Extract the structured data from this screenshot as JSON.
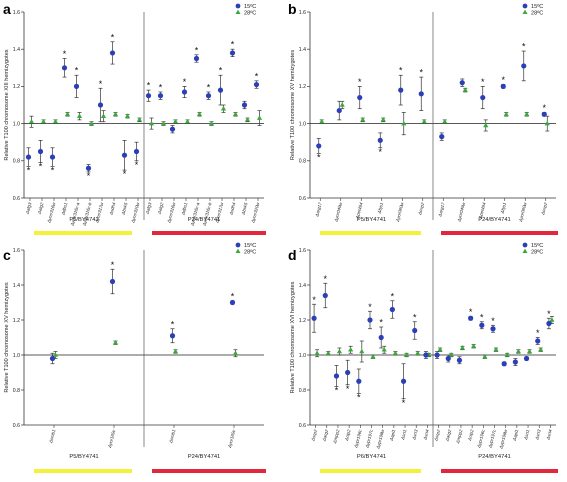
{
  "legend": {
    "series_1_label": "15ºC",
    "series_2_label": "28ºC",
    "series_1_color": "#2a3fb8",
    "series_2_color": "#3aa83a"
  },
  "colors": {
    "bar_left": "#f5f03a",
    "bar_right": "#e0283a"
  },
  "chart_data": [
    {
      "type": "scatter",
      "panel_letter": "a",
      "ylabel": "Relative T100 chromosome XIII hemizygotes",
      "ylim": [
        0.6,
        1.6
      ],
      "yticks": [
        "0.6",
        "0.8",
        "1.0",
        "1.2",
        "1.4",
        "1.6"
      ],
      "groups": [
        "P5/BY4741",
        "P24/BY4741"
      ],
      "categories": [
        "Δafg3",
        "Δatg2",
        "Δymr316w",
        "Δdbs1",
        "Δymr316c-a",
        "Δymr316c-b",
        "Δymr317w",
        "Δsdh4",
        "Δbsk5",
        "Δymr320w",
        "Δafg3",
        "Δatg2",
        "Δymr316w",
        "Δdbs1",
        "Δymr316c-a",
        "Δymr316c-b",
        "Δymr317w",
        "Δsdh4",
        "Δbsk5",
        "Δymr320w"
      ],
      "split_after": 10,
      "series": [
        {
          "name": "15ºC",
          "values": [
            0.82,
            0.85,
            0.82,
            1.3,
            1.2,
            0.76,
            1.1,
            1.38,
            0.83,
            0.85,
            1.15,
            1.15,
            0.97,
            1.17,
            1.35,
            1.15,
            1.18,
            1.38,
            1.1,
            1.21
          ],
          "errors": [
            0.05,
            0.06,
            0.05,
            0.05,
            0.06,
            0.02,
            0.09,
            0.06,
            0.08,
            0.05,
            0.03,
            0.02,
            0.02,
            0.03,
            0.02,
            0.02,
            0.08,
            0.02,
            0.02,
            0.02
          ]
        },
        {
          "name": "28ºC",
          "values": [
            1.01,
            1.01,
            1.01,
            1.05,
            1.04,
            1.0,
            1.04,
            1.05,
            1.04,
            1.02,
            1.0,
            1.0,
            1.01,
            1.01,
            1.05,
            1.0,
            1.08,
            1.05,
            1.02,
            1.03
          ],
          "errors": [
            0.03,
            0.01,
            0.01,
            0.01,
            0.02,
            0.01,
            0.03,
            0.01,
            0.01,
            0.01,
            0.03,
            0.01,
            0.01,
            0.01,
            0.01,
            0.01,
            0.02,
            0.01,
            0.01,
            0.04
          ]
        }
      ],
      "stars": [
        true,
        true,
        true,
        true,
        true,
        true,
        true,
        true,
        true,
        true,
        true,
        true,
        false,
        true,
        true,
        true,
        true,
        true,
        false,
        true
      ]
    },
    {
      "type": "scatter",
      "panel_letter": "b",
      "ylabel": "Relative T100 chromosome XV hemizygotes",
      "ylim": [
        0.6,
        1.6
      ],
      "yticks": [
        "0.6",
        "0.8",
        "1.0",
        "1.2",
        "1.4",
        "1.6"
      ],
      "groups": [
        "P5/BY4741",
        "P24/BY4741"
      ],
      "categories": [
        "Δarg17",
        "Δyor049w",
        "Δpet494",
        "Δbjs1",
        "Δyor060w",
        "Δovp2",
        "Δarg17",
        "Δyor049w",
        "Δpet494",
        "Δbjs1",
        "Δyor060w",
        "Δovp2"
      ],
      "split_after": 6,
      "series": [
        {
          "name": "15ºC",
          "values": [
            0.88,
            1.07,
            1.14,
            0.91,
            1.18,
            1.16,
            0.93,
            1.22,
            1.14,
            1.2,
            1.31,
            1.05
          ],
          "errors": [
            0.04,
            0.05,
            0.06,
            0.04,
            0.08,
            0.09,
            0.02,
            0.02,
            0.06,
            0.01,
            0.08,
            0.01
          ]
        },
        {
          "name": "28ºC",
          "values": [
            1.01,
            1.1,
            1.02,
            1.02,
            1.0,
            1.01,
            1.01,
            1.18,
            0.99,
            1.05,
            1.05,
            1.0
          ],
          "errors": [
            0.01,
            0.02,
            0.01,
            0.01,
            0.06,
            0.01,
            0.01,
            0.01,
            0.03,
            0.01,
            0.01,
            0.04
          ]
        }
      ],
      "stars": [
        true,
        false,
        true,
        true,
        true,
        true,
        false,
        false,
        true,
        true,
        true,
        true
      ]
    },
    {
      "type": "scatter",
      "panel_letter": "c",
      "ylabel": "Relative T100 chromosome XV hemizygotes",
      "ylim": [
        0.6,
        1.6
      ],
      "yticks": [
        "0.6",
        "0.8",
        "1.0",
        "1.2",
        "1.4",
        "1.6"
      ],
      "groups": [
        "P5/BY4741",
        "P24/BY4741"
      ],
      "categories": [
        "Δsmb1",
        "Δyor169c",
        "Δsmb1",
        "Δyor169c"
      ],
      "split_after": 2,
      "series": [
        {
          "name": "15ºC",
          "values": [
            0.98,
            1.42,
            1.11,
            1.3
          ],
          "errors": [
            0.03,
            0.07,
            0.04,
            0.01
          ]
        },
        {
          "name": "28ºC",
          "values": [
            1.0,
            1.07,
            1.02,
            1.01
          ],
          "errors": [
            0.02,
            0.01,
            0.01,
            0.02
          ]
        }
      ],
      "stars": [
        false,
        true,
        true,
        true
      ]
    },
    {
      "type": "scatter",
      "panel_letter": "d",
      "ylabel": "Relative T100 chromosome XVI hemizygotes",
      "ylim": [
        0.6,
        1.6
      ],
      "yticks": [
        "0.6",
        "0.8",
        "1.0",
        "1.2",
        "1.4",
        "1.6"
      ],
      "groups": [
        "P6/BY4741",
        "P24/BY4741"
      ],
      "categories": [
        "Δsrp2",
        "Δarg2",
        "Δmpp2",
        "Δnip2",
        "Δypr196c",
        "Δypr197c",
        "Δypr198w",
        "Δapl1",
        "Δsrt1",
        "Δsrt3",
        "Δsrt4",
        "Δsrp2",
        "Δarg2",
        "Δmpp2",
        "Δnip2",
        "Δypr196c",
        "Δypr197c",
        "Δypr198w",
        "Δapl1",
        "Δsrt1",
        "Δsrt3",
        "Δsrt4"
      ],
      "split_after": 11,
      "series": [
        {
          "name": "15ºC",
          "values": [
            1.21,
            1.34,
            0.88,
            0.9,
            0.85,
            1.2,
            1.1,
            1.26,
            0.85,
            1.14,
            1.0,
            1.0,
            0.98,
            0.97,
            1.21,
            1.17,
            1.15,
            0.95,
            0.96,
            0.98,
            1.08,
            1.18
          ],
          "errors": [
            0.08,
            0.07,
            0.06,
            0.07,
            0.07,
            0.05,
            0.06,
            0.05,
            0.1,
            0.05,
            0.02,
            0.02,
            0.02,
            0.02,
            0.01,
            0.02,
            0.02,
            0.01,
            0.02,
            0.01,
            0.02,
            0.03
          ]
        },
        {
          "name": "28ºC",
          "values": [
            1.01,
            1.01,
            1.02,
            1.03,
            1.02,
            0.99,
            1.03,
            1.01,
            1.0,
            1.01,
            1.0,
            1.03,
            1.0,
            1.04,
            1.05,
            0.99,
            1.03,
            1.0,
            1.02,
            1.02,
            1.03,
            1.2
          ],
          "errors": [
            0.02,
            0.01,
            0.02,
            0.02,
            0.06,
            0.01,
            0.02,
            0.01,
            0.01,
            0.01,
            0.01,
            0.01,
            0.01,
            0.01,
            0.01,
            0.01,
            0.01,
            0.01,
            0.01,
            0.01,
            0.01,
            0.02
          ]
        }
      ],
      "stars": [
        true,
        true,
        true,
        true,
        true,
        true,
        true,
        true,
        true,
        true,
        false,
        false,
        false,
        false,
        true,
        true,
        true,
        false,
        false,
        false,
        true,
        true
      ]
    }
  ]
}
